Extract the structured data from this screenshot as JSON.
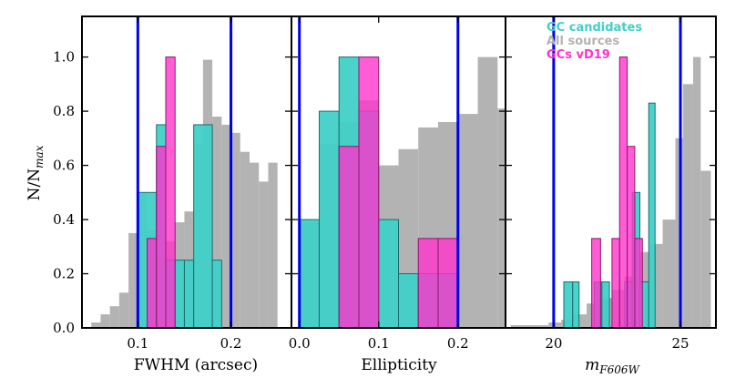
{
  "chart_data": [
    {
      "type": "bar",
      "panel": "fwhm",
      "xlabel": "FWHM (arcsec)",
      "ylabel": "N/N_max",
      "xlim": [
        0.04,
        0.265
      ],
      "ylim": [
        0,
        1.15
      ],
      "xticks": [
        0.1,
        0.2
      ],
      "xtick_labels": [
        "0.1",
        "0.2"
      ],
      "yticks": [
        0.0,
        0.2,
        0.4,
        0.6,
        0.8,
        1.0
      ],
      "ytick_labels": [
        "0.0",
        "0.2",
        "0.4",
        "0.6",
        "0.8",
        "1.0"
      ],
      "vlines": [
        0.1,
        0.2
      ],
      "series": [
        {
          "name": "All sources",
          "color": "#b3b3b3",
          "bins": [
            [
              0.05,
              0.06,
              0.02
            ],
            [
              0.06,
              0.07,
              0.05
            ],
            [
              0.07,
              0.08,
              0.08
            ],
            [
              0.08,
              0.09,
              0.13
            ],
            [
              0.09,
              0.1,
              0.35
            ],
            [
              0.1,
              0.11,
              0.5
            ],
            [
              0.11,
              0.12,
              0.36
            ],
            [
              0.12,
              0.13,
              0.26
            ],
            [
              0.13,
              0.14,
              0.32
            ],
            [
              0.14,
              0.15,
              0.39
            ],
            [
              0.15,
              0.16,
              0.43
            ],
            [
              0.16,
              0.17,
              0.68
            ],
            [
              0.17,
              0.18,
              0.99
            ],
            [
              0.18,
              0.19,
              0.78
            ],
            [
              0.19,
              0.2,
              0.75
            ],
            [
              0.2,
              0.21,
              0.72
            ],
            [
              0.21,
              0.22,
              0.65
            ],
            [
              0.22,
              0.23,
              0.61
            ],
            [
              0.23,
              0.24,
              0.54
            ],
            [
              0.24,
              0.25,
              0.61
            ]
          ]
        },
        {
          "name": "GC candidates",
          "color": "#40d0c8",
          "bins": [
            [
              0.1,
              0.12,
              0.5
            ],
            [
              0.12,
              0.13,
              0.75
            ],
            [
              0.13,
              0.14,
              0.25
            ],
            [
              0.14,
              0.15,
              0.25
            ],
            [
              0.15,
              0.16,
              0.25
            ],
            [
              0.16,
              0.18,
              0.75
            ],
            [
              0.18,
              0.19,
              0.25
            ]
          ]
        },
        {
          "name": "GCs vD19",
          "color": "#ff33cc",
          "bins": [
            [
              0.11,
              0.12,
              0.33
            ],
            [
              0.12,
              0.13,
              0.67
            ],
            [
              0.13,
              0.14,
              1.0
            ]
          ]
        }
      ]
    },
    {
      "type": "bar",
      "panel": "ellipticity",
      "xlabel": "Ellipticity",
      "xlim": [
        -0.01,
        0.26
      ],
      "ylim": [
        0,
        1.15
      ],
      "xticks": [
        0.0,
        0.1,
        0.2
      ],
      "xtick_labels": [
        "0.0",
        "0.1",
        "0.2"
      ],
      "vlines": [
        0.0,
        0.2
      ],
      "series": [
        {
          "name": "All sources",
          "color": "#b3b3b3",
          "bins": [
            [
              0.0,
              0.025,
              0.39
            ],
            [
              0.025,
              0.05,
              0.68
            ],
            [
              0.05,
              0.075,
              0.76
            ],
            [
              0.075,
              0.1,
              0.84
            ],
            [
              0.1,
              0.125,
              0.6
            ],
            [
              0.125,
              0.15,
              0.66
            ],
            [
              0.15,
              0.175,
              0.74
            ],
            [
              0.175,
              0.2,
              0.76
            ],
            [
              0.2,
              0.225,
              0.79
            ],
            [
              0.225,
              0.25,
              1.0
            ],
            [
              0.25,
              0.275,
              0.81
            ]
          ]
        },
        {
          "name": "GC candidates",
          "color": "#40d0c8",
          "bins": [
            [
              0.0,
              0.025,
              0.4
            ],
            [
              0.025,
              0.05,
              0.8
            ],
            [
              0.05,
              0.075,
              1.0
            ],
            [
              0.075,
              0.1,
              0.8
            ],
            [
              0.1,
              0.125,
              0.4
            ],
            [
              0.125,
              0.15,
              0.2
            ],
            [
              0.15,
              0.175,
              0.2
            ],
            [
              0.175,
              0.2,
              0.2
            ]
          ]
        },
        {
          "name": "GCs vD19",
          "color": "#ff33cc",
          "bins": [
            [
              0.05,
              0.075,
              0.67
            ],
            [
              0.075,
              0.1,
              1.0
            ],
            [
              0.15,
              0.175,
              0.33
            ],
            [
              0.175,
              0.2,
              0.33
            ]
          ]
        }
      ]
    },
    {
      "type": "bar",
      "panel": "magnitude",
      "xlabel": "m_F606W",
      "xlim": [
        18.1,
        26.4
      ],
      "ylim": [
        0,
        1.15
      ],
      "xticks": [
        20,
        25
      ],
      "xtick_labels": [
        "20",
        "25"
      ],
      "vlines": [
        20,
        25
      ],
      "series": [
        {
          "name": "All sources",
          "color": "#b3b3b3",
          "bins": [
            [
              18.3,
              18.8,
              0.01
            ],
            [
              18.8,
              19.3,
              0.01
            ],
            [
              19.3,
              19.8,
              0.01
            ],
            [
              19.8,
              20.3,
              0.02
            ],
            [
              20.3,
              20.8,
              0.03
            ],
            [
              20.8,
              21.3,
              0.05
            ],
            [
              21.3,
              21.8,
              0.09
            ],
            [
              21.8,
              22.3,
              0.11
            ],
            [
              22.3,
              22.8,
              0.14
            ],
            [
              22.8,
              23.3,
              0.19
            ],
            [
              23.3,
              23.8,
              0.28
            ],
            [
              23.8,
              24.3,
              0.31
            ],
            [
              24.3,
              24.8,
              0.4
            ],
            [
              24.8,
              25.1,
              0.7
            ],
            [
              25.1,
              25.5,
              0.9
            ],
            [
              25.5,
              25.8,
              1.0
            ],
            [
              25.8,
              26.2,
              0.58
            ]
          ]
        },
        {
          "name": "GC candidates",
          "color": "#40d0c8",
          "bins": [
            [
              20.4,
              20.75,
              0.17
            ],
            [
              20.75,
              21.0,
              0.17
            ],
            [
              21.6,
              21.9,
              0.17
            ],
            [
              21.9,
              22.2,
              0.17
            ],
            [
              22.2,
              22.5,
              0.0
            ],
            [
              22.8,
              23.1,
              0.17
            ],
            [
              23.1,
              23.4,
              0.5
            ],
            [
              23.4,
              23.75,
              0.17
            ],
            [
              23.75,
              24.0,
              0.83
            ]
          ]
        },
        {
          "name": "GCs vD19",
          "color": "#ff33cc",
          "bins": [
            [
              21.5,
              21.85,
              0.33
            ],
            [
              22.3,
              22.6,
              0.33
            ],
            [
              22.6,
              22.9,
              1.0
            ],
            [
              22.9,
              23.2,
              0.67
            ],
            [
              23.2,
              23.5,
              0.33
            ]
          ]
        }
      ],
      "legend": {
        "placement": "top-left",
        "entries": [
          {
            "label": "GC candidates",
            "color": "#40d0c8"
          },
          {
            "label": "All sources",
            "color": "#b3b3b3"
          },
          {
            "label": "GCs vD19",
            "color": "#ff33cc"
          }
        ]
      }
    }
  ],
  "ylabel_text": "N/N",
  "ylabel_sub": "max",
  "panel_titles": {
    "fwhm_xlabel": "FWHM (arcsec)",
    "ellipticity_xlabel": "Ellipticity",
    "mag_xlabel_main": "m",
    "mag_xlabel_sub": "F606W"
  },
  "colors": {
    "vline": "#0000ee",
    "all_sources": "#b3b3b3",
    "gc_candidates": "#40d0c8",
    "gcs_vd19": "#ff33cc"
  }
}
